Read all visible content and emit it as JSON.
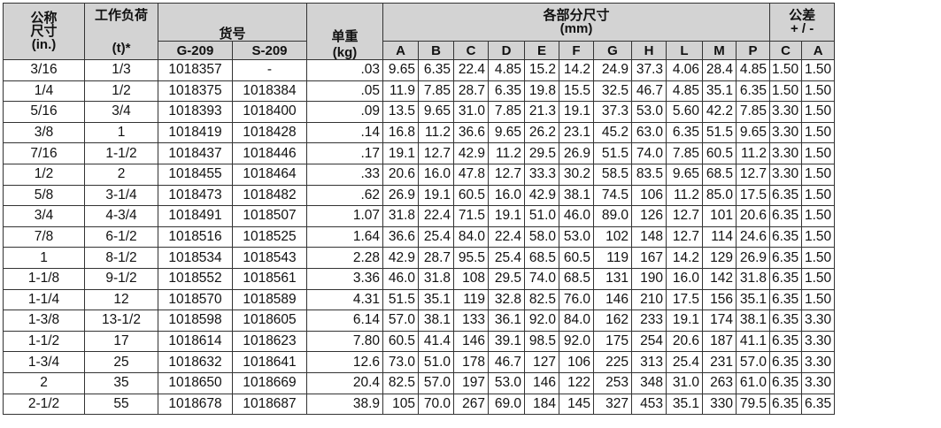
{
  "header": {
    "nominal_size": [
      "公称",
      "尺寸",
      "(in.)"
    ],
    "working_load": [
      "工作负荷",
      "(t)*"
    ],
    "part_no": "货号",
    "part_no_cols": [
      "G-209",
      "S-209"
    ],
    "weight": [
      "单重",
      "(kg)"
    ],
    "dimensions": [
      "各部分尺寸",
      "(mm)"
    ],
    "dimension_cols": [
      "A",
      "B",
      "C",
      "D",
      "E",
      "F",
      "G",
      "H",
      "L",
      "M",
      "P"
    ],
    "tolerance": [
      "公差",
      "+ / -"
    ],
    "tolerance_cols": [
      "C",
      "A"
    ]
  },
  "rows": [
    [
      "3/16",
      "1/3",
      "1018357",
      "-",
      ".03",
      "9.65",
      "6.35",
      "22.4",
      "4.85",
      "15.2",
      "14.2",
      "24.9",
      "37.3",
      "4.06",
      "28.4",
      "4.85",
      "1.50",
      "1.50"
    ],
    [
      "1/4",
      "1/2",
      "1018375",
      "1018384",
      ".05",
      "11.9",
      "7.85",
      "28.7",
      "6.35",
      "19.8",
      "15.5",
      "32.5",
      "46.7",
      "4.85",
      "35.1",
      "6.35",
      "1.50",
      "1.50"
    ],
    [
      "5/16",
      "3/4",
      "1018393",
      "1018400",
      ".09",
      "13.5",
      "9.65",
      "31.0",
      "7.85",
      "21.3",
      "19.1",
      "37.3",
      "53.0",
      "5.60",
      "42.2",
      "7.85",
      "3.30",
      "1.50"
    ],
    [
      "3/8",
      "1",
      "1018419",
      "1018428",
      ".14",
      "16.8",
      "11.2",
      "36.6",
      "9.65",
      "26.2",
      "23.1",
      "45.2",
      "63.0",
      "6.35",
      "51.5",
      "9.65",
      "3.30",
      "1.50"
    ],
    [
      "7/16",
      "1-1/2",
      "1018437",
      "1018446",
      ".17",
      "19.1",
      "12.7",
      "42.9",
      "11.2",
      "29.5",
      "26.9",
      "51.5",
      "74.0",
      "7.85",
      "60.5",
      "11.2",
      "3.30",
      "1.50"
    ],
    [
      "1/2",
      "2",
      "1018455",
      "1018464",
      ".33",
      "20.6",
      "16.0",
      "47.8",
      "12.7",
      "33.3",
      "30.2",
      "58.5",
      "83.5",
      "9.65",
      "68.5",
      "12.7",
      "3.30",
      "1.50"
    ],
    [
      "5/8",
      "3-1/4",
      "1018473",
      "1018482",
      ".62",
      "26.9",
      "19.1",
      "60.5",
      "16.0",
      "42.9",
      "38.1",
      "74.5",
      "106",
      "11.2",
      "85.0",
      "17.5",
      "6.35",
      "1.50"
    ],
    [
      "3/4",
      "4-3/4",
      "1018491",
      "1018507",
      "1.07",
      "31.8",
      "22.4",
      "71.5",
      "19.1",
      "51.0",
      "46.0",
      "89.0",
      "126",
      "12.7",
      "101",
      "20.6",
      "6.35",
      "1.50"
    ],
    [
      "7/8",
      "6-1/2",
      "1018516",
      "1018525",
      "1.64",
      "36.6",
      "25.4",
      "84.0",
      "22.4",
      "58.0",
      "53.0",
      "102",
      "148",
      "12.7",
      "114",
      "24.6",
      "6.35",
      "1.50"
    ],
    [
      "1",
      "8-1/2",
      "1018534",
      "1018543",
      "2.28",
      "42.9",
      "28.7",
      "95.5",
      "25.4",
      "68.5",
      "60.5",
      "119",
      "167",
      "14.2",
      "129",
      "26.9",
      "6.35",
      "1.50"
    ],
    [
      "1-1/8",
      "9-1/2",
      "1018552",
      "1018561",
      "3.36",
      "46.0",
      "31.8",
      "108",
      "29.5",
      "74.0",
      "68.5",
      "131",
      "190",
      "16.0",
      "142",
      "31.8",
      "6.35",
      "1.50"
    ],
    [
      "1-1/4",
      "12",
      "1018570",
      "1018589",
      "4.31",
      "51.5",
      "35.1",
      "119",
      "32.8",
      "82.5",
      "76.0",
      "146",
      "210",
      "17.5",
      "156",
      "35.1",
      "6.35",
      "1.50"
    ],
    [
      "1-3/8",
      "13-1/2",
      "1018598",
      "1018605",
      "6.14",
      "57.0",
      "38.1",
      "133",
      "36.1",
      "92.0",
      "84.0",
      "162",
      "233",
      "19.1",
      "174",
      "38.1",
      "6.35",
      "3.30"
    ],
    [
      "1-1/2",
      "17",
      "1018614",
      "1018623",
      "7.80",
      "60.5",
      "41.4",
      "146",
      "39.1",
      "98.5",
      "92.0",
      "175",
      "254",
      "20.6",
      "187",
      "41.1",
      "6.35",
      "3.30"
    ],
    [
      "1-3/4",
      "25",
      "1018632",
      "1018641",
      "12.6",
      "73.0",
      "51.0",
      "178",
      "46.7",
      "127",
      "106",
      "225",
      "313",
      "25.4",
      "231",
      "57.0",
      "6.35",
      "3.30"
    ],
    [
      "2",
      "35",
      "1018650",
      "1018669",
      "20.4",
      "82.5",
      "57.0",
      "197",
      "53.0",
      "146",
      "122",
      "253",
      "348",
      "31.0",
      "263",
      "61.0",
      "6.35",
      "3.30"
    ],
    [
      "2-1/2",
      "55",
      "1018678",
      "1018687",
      "38.9",
      "105",
      "70.0",
      "267",
      "69.0",
      "184",
      "145",
      "327",
      "453",
      "35.1",
      "330",
      "79.5",
      "6.35",
      "6.35"
    ]
  ]
}
